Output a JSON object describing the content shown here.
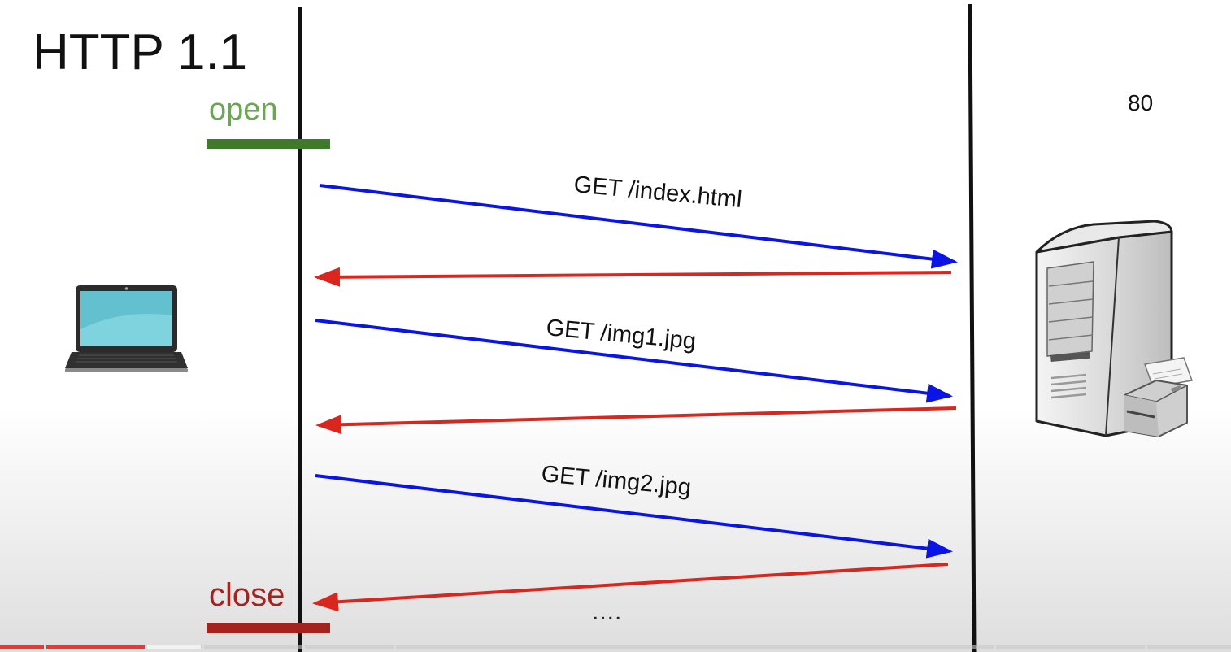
{
  "title": "HTTP 1.1",
  "connection": {
    "open_label": "open",
    "close_label": "close"
  },
  "server": {
    "port_label": "80"
  },
  "requests": [
    {
      "label": "GET /index.html"
    },
    {
      "label": "GET /img1.jpg"
    },
    {
      "label": "GET /img2.jpg"
    }
  ],
  "continuation": "....",
  "colors": {
    "request_arrow": "#0a14e6",
    "response_arrow": "#d9261f",
    "open_bar": "#3e7a2a",
    "open_text": "#6aa84f",
    "close_bar": "#a3231f",
    "close_text": "#a3231f"
  },
  "icons": {
    "client": "laptop-icon",
    "server": "server-tower-icon",
    "printer": "printer-icon"
  },
  "video": {
    "progress_fraction": 0.118,
    "buffered_fraction": 0.163
  }
}
